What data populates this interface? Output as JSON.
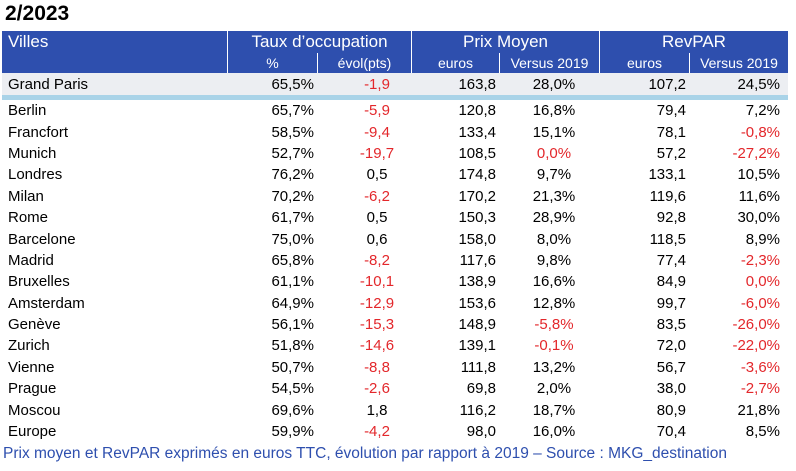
{
  "title": "2/2023",
  "headers": {
    "city": "Villes",
    "groups": [
      "Taux d’occupation",
      "Prix Moyen",
      "RevPAR"
    ],
    "sub": [
      "%",
      "évol(pts)",
      "euros",
      "Versus 2019",
      "euros",
      "Versus 2019"
    ]
  },
  "highlight": {
    "city": "Grand Paris",
    "cells": [
      "65,5%",
      "-1,9",
      "163,8",
      "28,0%",
      "107,2",
      "24,5%"
    ],
    "neg": [
      false,
      true,
      false,
      false,
      false,
      false
    ]
  },
  "rows": [
    {
      "city": "Berlin",
      "cells": [
        "65,7%",
        "-5,9",
        "120,8",
        "16,8%",
        "79,4",
        "7,2%"
      ],
      "neg": [
        false,
        true,
        false,
        false,
        false,
        false
      ]
    },
    {
      "city": "Francfort",
      "cells": [
        "58,5%",
        "-9,4",
        "133,4",
        "15,1%",
        "78,1",
        "-0,8%"
      ],
      "neg": [
        false,
        true,
        false,
        false,
        false,
        true
      ]
    },
    {
      "city": "Munich",
      "cells": [
        "52,7%",
        "-19,7",
        "108,5",
        "0,0%",
        "57,2",
        "-27,2%"
      ],
      "neg": [
        false,
        true,
        false,
        true,
        false,
        true
      ]
    },
    {
      "city": "Londres",
      "cells": [
        "76,2%",
        "0,5",
        "174,8",
        "9,7%",
        "133,1",
        "10,5%"
      ],
      "neg": [
        false,
        false,
        false,
        false,
        false,
        false
      ]
    },
    {
      "city": "Milan",
      "cells": [
        "70,2%",
        "-6,2",
        "170,2",
        "21,3%",
        "119,6",
        "11,6%"
      ],
      "neg": [
        false,
        true,
        false,
        false,
        false,
        false
      ]
    },
    {
      "city": "Rome",
      "cells": [
        "61,7%",
        "0,5",
        "150,3",
        "28,9%",
        "92,8",
        "30,0%"
      ],
      "neg": [
        false,
        false,
        false,
        false,
        false,
        false
      ]
    },
    {
      "city": "Barcelone",
      "cells": [
        "75,0%",
        "0,6",
        "158,0",
        "8,0%",
        "118,5",
        "8,9%"
      ],
      "neg": [
        false,
        false,
        false,
        false,
        false,
        false
      ]
    },
    {
      "city": "Madrid",
      "cells": [
        "65,8%",
        "-8,2",
        "117,6",
        "9,8%",
        "77,4",
        "-2,3%"
      ],
      "neg": [
        false,
        true,
        false,
        false,
        false,
        true
      ]
    },
    {
      "city": "Bruxelles",
      "cells": [
        "61,1%",
        "-10,1",
        "138,9",
        "16,6%",
        "84,9",
        "0,0%"
      ],
      "neg": [
        false,
        true,
        false,
        false,
        false,
        true
      ]
    },
    {
      "city": "Amsterdam",
      "cells": [
        "64,9%",
        "-12,9",
        "153,6",
        "12,8%",
        "99,7",
        "-6,0%"
      ],
      "neg": [
        false,
        true,
        false,
        false,
        false,
        true
      ]
    },
    {
      "city": "Genève",
      "cells": [
        "56,1%",
        "-15,3",
        "148,9",
        "-5,8%",
        "83,5",
        "-26,0%"
      ],
      "neg": [
        false,
        true,
        false,
        true,
        false,
        true
      ]
    },
    {
      "city": "Zurich",
      "cells": [
        "51,8%",
        "-14,6",
        "139,1",
        "-0,1%",
        "72,0",
        "-22,0%"
      ],
      "neg": [
        false,
        true,
        false,
        true,
        false,
        true
      ]
    },
    {
      "city": "Vienne",
      "cells": [
        "50,7%",
        "-8,8",
        "111,8",
        "13,2%",
        "56,7",
        "-3,6%"
      ],
      "neg": [
        false,
        true,
        false,
        false,
        false,
        true
      ]
    },
    {
      "city": "Prague",
      "cells": [
        "54,5%",
        "-2,6",
        "69,8",
        "2,0%",
        "38,0",
        "-2,7%"
      ],
      "neg": [
        false,
        true,
        false,
        false,
        false,
        true
      ]
    },
    {
      "city": "Moscou",
      "cells": [
        "69,6%",
        "1,8",
        "116,2",
        "18,7%",
        "80,9",
        "21,8%"
      ],
      "neg": [
        false,
        false,
        false,
        false,
        false,
        false
      ]
    },
    {
      "city": "Europe",
      "cells": [
        "59,9%",
        "-4,2",
        "98,0",
        "16,0%",
        "70,4",
        "8,5%"
      ],
      "neg": [
        false,
        true,
        false,
        false,
        false,
        false
      ]
    }
  ],
  "footnote": "Prix moyen et RevPAR exprimés en euros TTC, évolution par rapport à 2019 – Source : MKG_destination",
  "colors": {
    "header_bg": "#2e4fae",
    "negative": "#e3272b",
    "separator": "#a9d3e8",
    "highlight_bg": "#eceef2",
    "footnote": "#2e4fae"
  }
}
